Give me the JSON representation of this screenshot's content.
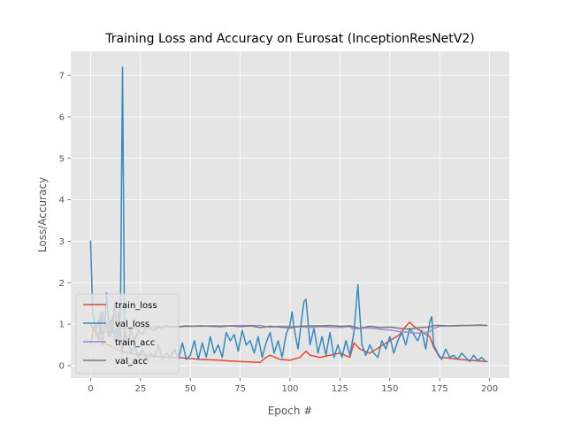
{
  "chart_data": {
    "type": "line",
    "title": "Training Loss and Accuracy on Eurosat (InceptionResNetV2)",
    "xlabel": "Epoch #",
    "ylabel": "Loss/Accuracy",
    "xlim": [
      -9.95,
      209.95
    ],
    "ylim": [
      -0.3,
      7.58
    ],
    "xticks": [
      0,
      25,
      50,
      75,
      100,
      125,
      150,
      175,
      200
    ],
    "yticks": [
      0,
      1,
      2,
      3,
      4,
      5,
      6,
      7
    ],
    "grid": true,
    "legend_position": "lower-left",
    "series": [
      {
        "name": "train_loss",
        "color": "#E24A33",
        "x": [
          0,
          1,
          2,
          3,
          4,
          5,
          6,
          7,
          8,
          9,
          10,
          11,
          12,
          13,
          14,
          15,
          16,
          17,
          18,
          19,
          20,
          25,
          30,
          35,
          40,
          45,
          50,
          55,
          60,
          65,
          70,
          75,
          80,
          85,
          88,
          90,
          95,
          100,
          105,
          108,
          110,
          115,
          120,
          125,
          130,
          132,
          135,
          140,
          145,
          150,
          155,
          158,
          160,
          162,
          165,
          170,
          172,
          175,
          180,
          185,
          190,
          195,
          199
        ],
        "y": [
          1.0,
          0.9,
          0.85,
          0.75,
          0.7,
          0.65,
          0.6,
          0.55,
          0.5,
          0.5,
          0.48,
          0.45,
          0.42,
          0.4,
          0.38,
          0.36,
          0.35,
          0.33,
          0.32,
          0.3,
          0.29,
          0.26,
          0.24,
          0.22,
          0.2,
          0.19,
          0.17,
          0.15,
          0.14,
          0.13,
          0.11,
          0.1,
          0.09,
          0.08,
          0.2,
          0.25,
          0.15,
          0.13,
          0.2,
          0.35,
          0.25,
          0.2,
          0.25,
          0.3,
          0.2,
          0.55,
          0.4,
          0.3,
          0.45,
          0.6,
          0.75,
          0.95,
          1.05,
          0.95,
          0.85,
          0.7,
          0.45,
          0.2,
          0.18,
          0.15,
          0.13,
          0.11,
          0.1
        ]
      },
      {
        "name": "val_loss",
        "color": "#348ABD",
        "x": [
          0,
          1,
          2,
          3,
          4,
          5,
          6,
          7,
          8,
          9,
          10,
          11,
          12,
          13,
          14,
          15,
          16,
          17,
          18,
          19,
          20,
          22,
          24,
          26,
          28,
          30,
          32,
          34,
          36,
          38,
          40,
          42,
          44,
          46,
          48,
          50,
          52,
          54,
          56,
          58,
          60,
          62,
          64,
          66,
          68,
          70,
          72,
          74,
          76,
          78,
          80,
          82,
          84,
          86,
          88,
          90,
          92,
          94,
          96,
          98,
          100,
          101,
          102,
          104,
          106,
          107,
          108,
          110,
          112,
          114,
          116,
          118,
          120,
          122,
          124,
          126,
          128,
          130,
          132,
          134,
          135,
          136,
          138,
          140,
          142,
          144,
          146,
          148,
          150,
          152,
          154,
          156,
          158,
          160,
          162,
          164,
          166,
          168,
          170,
          171,
          172,
          174,
          176,
          178,
          180,
          182,
          184,
          186,
          188,
          190,
          192,
          194,
          196,
          198,
          199
        ],
        "y": [
          3.02,
          1.3,
          1.0,
          0.9,
          1.1,
          0.8,
          1.3,
          0.9,
          1.75,
          1.0,
          0.7,
          1.2,
          0.6,
          0.9,
          0.5,
          1.5,
          7.2,
          0.8,
          0.5,
          0.6,
          0.3,
          0.5,
          0.2,
          0.4,
          0.15,
          0.3,
          0.2,
          0.5,
          0.15,
          0.3,
          0.2,
          0.4,
          0.15,
          0.55,
          0.15,
          0.25,
          0.6,
          0.15,
          0.55,
          0.2,
          0.7,
          0.3,
          0.5,
          0.2,
          0.8,
          0.6,
          0.75,
          0.35,
          0.85,
          0.5,
          0.6,
          0.3,
          0.7,
          0.2,
          0.55,
          0.8,
          0.3,
          0.6,
          0.2,
          0.75,
          1.0,
          1.3,
          0.9,
          0.4,
          1.2,
          1.55,
          1.6,
          0.5,
          0.9,
          0.3,
          0.7,
          0.25,
          0.8,
          0.2,
          0.5,
          0.2,
          0.6,
          0.25,
          0.8,
          1.95,
          1.2,
          0.5,
          0.25,
          0.5,
          0.3,
          0.2,
          0.6,
          0.4,
          0.7,
          0.3,
          0.6,
          0.8,
          0.5,
          0.9,
          0.75,
          0.6,
          0.85,
          0.4,
          1.05,
          1.18,
          0.5,
          0.3,
          0.15,
          0.4,
          0.2,
          0.25,
          0.15,
          0.3,
          0.2,
          0.1,
          0.25,
          0.12,
          0.2,
          0.1,
          0.1
        ]
      },
      {
        "name": "train_acc",
        "color": "#988ED5",
        "x": [
          0,
          1,
          2,
          3,
          4,
          5,
          6,
          7,
          8,
          9,
          10,
          11,
          12,
          13,
          14,
          15,
          16,
          17,
          18,
          19,
          20,
          25,
          30,
          35,
          40,
          45,
          50,
          55,
          60,
          65,
          70,
          75,
          80,
          85,
          88,
          90,
          95,
          100,
          105,
          110,
          115,
          120,
          125,
          130,
          132,
          135,
          140,
          145,
          150,
          155,
          160,
          165,
          170,
          172,
          175,
          180,
          185,
          190,
          195,
          199
        ],
        "y": [
          0.65,
          0.7,
          0.72,
          0.74,
          0.76,
          0.78,
          0.8,
          0.81,
          0.82,
          0.83,
          0.84,
          0.85,
          0.86,
          0.87,
          0.88,
          0.88,
          0.89,
          0.9,
          0.9,
          0.91,
          0.91,
          0.92,
          0.93,
          0.93,
          0.94,
          0.94,
          0.95,
          0.95,
          0.96,
          0.96,
          0.96,
          0.97,
          0.97,
          0.97,
          0.94,
          0.93,
          0.95,
          0.95,
          0.94,
          0.92,
          0.94,
          0.93,
          0.92,
          0.94,
          0.88,
          0.9,
          0.91,
          0.88,
          0.86,
          0.82,
          0.8,
          0.78,
          0.82,
          0.9,
          0.95,
          0.96,
          0.96,
          0.97,
          0.97,
          0.97
        ]
      },
      {
        "name": "val_acc",
        "color": "#777777",
        "x": [
          0,
          1,
          2,
          3,
          4,
          5,
          6,
          7,
          8,
          9,
          10,
          11,
          12,
          13,
          14,
          15,
          16,
          17,
          18,
          19,
          20,
          22,
          24,
          26,
          28,
          30,
          32,
          34,
          36,
          38,
          40,
          42,
          44,
          46,
          48,
          50,
          55,
          60,
          65,
          70,
          75,
          80,
          85,
          90,
          95,
          100,
          105,
          110,
          115,
          120,
          125,
          130,
          135,
          140,
          145,
          150,
          155,
          160,
          165,
          170,
          172,
          175,
          180,
          185,
          190,
          195,
          199
        ],
        "y": [
          0.5,
          0.8,
          1.0,
          0.8,
          0.6,
          1.3,
          0.5,
          0.95,
          1.0,
          0.7,
          1.1,
          0.8,
          1.5,
          0.85,
          1.3,
          0.8,
          0.3,
          0.9,
          0.7,
          0.5,
          0.9,
          0.6,
          0.85,
          0.75,
          0.95,
          0.9,
          0.85,
          0.95,
          0.9,
          0.97,
          0.92,
          0.95,
          0.93,
          0.95,
          0.96,
          0.95,
          0.96,
          0.95,
          0.94,
          0.96,
          0.94,
          0.96,
          0.92,
          0.95,
          0.93,
          0.91,
          0.95,
          0.96,
          0.96,
          0.97,
          0.95,
          0.96,
          0.9,
          0.95,
          0.92,
          0.93,
          0.9,
          0.88,
          0.92,
          0.93,
          0.97,
          0.97,
          0.96,
          0.97,
          0.97,
          0.98,
          0.97
        ]
      }
    ]
  }
}
